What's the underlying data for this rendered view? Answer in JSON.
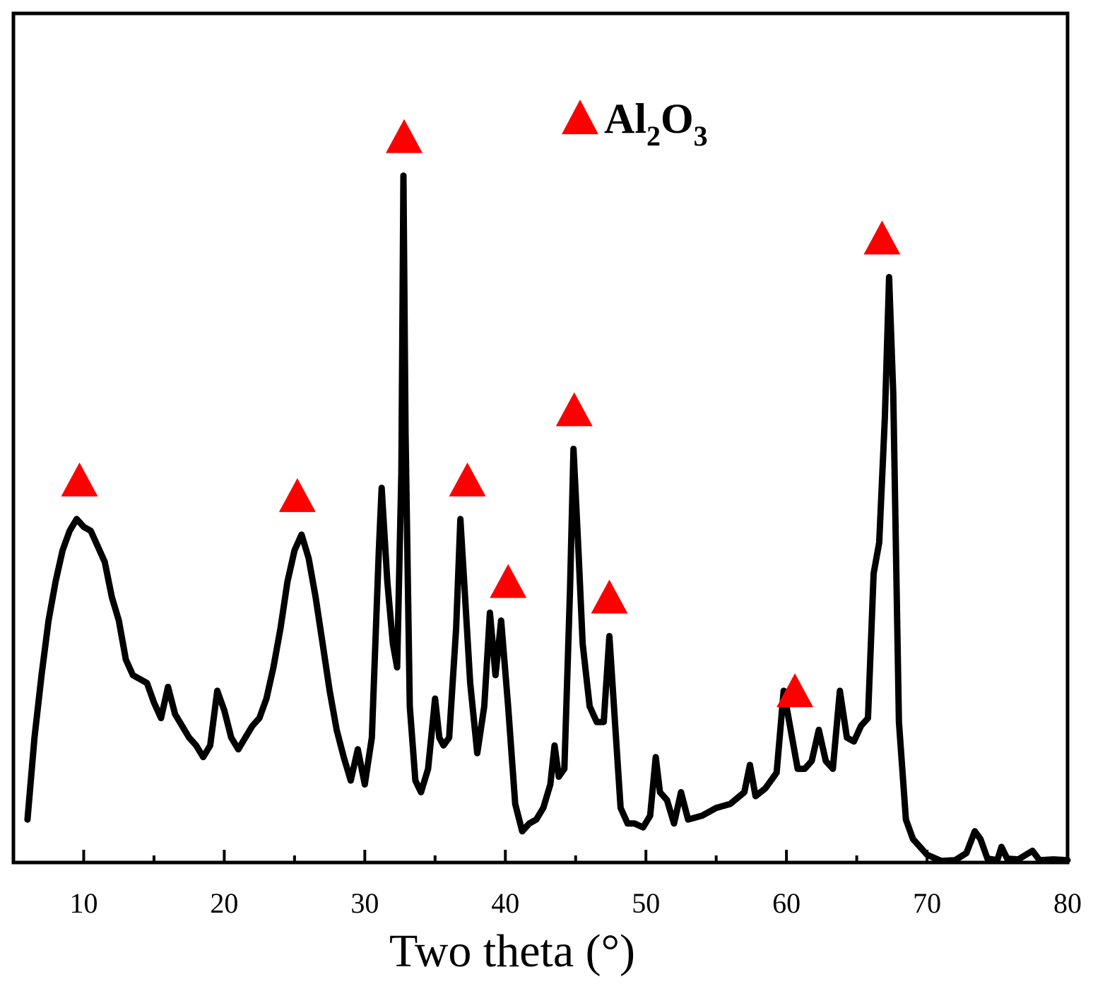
{
  "chart_data": {
    "type": "line",
    "title": "",
    "xlabel": "Two theta (°)",
    "ylabel": "",
    "xlim": [
      5,
      80
    ],
    "ylim": [
      0,
      100
    ],
    "x_ticks": [
      "10",
      "20",
      "30",
      "40",
      "50",
      "60",
      "70",
      "80"
    ],
    "grid": false,
    "line_color": "#000000",
    "marker_color": "#ff0000",
    "legend": {
      "placement": "top-center",
      "marker": "red-triangle",
      "label_base_1": "Al",
      "label_sub_1": "2",
      "label_base_2": "O",
      "label_sub_2": "3"
    },
    "peak_markers_x": [
      9.7,
      25.2,
      32.8,
      37.3,
      40.2,
      44.9,
      47.4,
      60.6,
      66.8
    ],
    "series": [
      {
        "values": [
          [
            6.0,
            5.5
          ],
          [
            6.5,
            16
          ],
          [
            7.0,
            24
          ],
          [
            7.5,
            31
          ],
          [
            8.0,
            36
          ],
          [
            8.5,
            40
          ],
          [
            9.0,
            42.5
          ],
          [
            9.5,
            44
          ],
          [
            10.0,
            43
          ],
          [
            10.5,
            42.5
          ],
          [
            11.0,
            40.5
          ],
          [
            11.5,
            38.5
          ],
          [
            12.0,
            34
          ],
          [
            12.5,
            31
          ],
          [
            13.0,
            26
          ],
          [
            13.5,
            24
          ],
          [
            14.0,
            23.5
          ],
          [
            14.5,
            23
          ],
          [
            15.0,
            20.5
          ],
          [
            15.5,
            18.5
          ],
          [
            16.0,
            22.5
          ],
          [
            16.5,
            19
          ],
          [
            17.0,
            17.5
          ],
          [
            17.5,
            16
          ],
          [
            18.0,
            15
          ],
          [
            18.5,
            13.5
          ],
          [
            19.0,
            15
          ],
          [
            19.5,
            22
          ],
          [
            20.0,
            19.5
          ],
          [
            20.5,
            16
          ],
          [
            21.0,
            14.5
          ],
          [
            21.5,
            16
          ],
          [
            22.0,
            17.5
          ],
          [
            22.5,
            18.5
          ],
          [
            23.0,
            21
          ],
          [
            23.5,
            25
          ],
          [
            24.0,
            30
          ],
          [
            24.5,
            36
          ],
          [
            25.0,
            40
          ],
          [
            25.5,
            42
          ],
          [
            26.0,
            39
          ],
          [
            26.5,
            34
          ],
          [
            27.0,
            28
          ],
          [
            27.5,
            22
          ],
          [
            28.0,
            17
          ],
          [
            28.5,
            13.5
          ],
          [
            29.0,
            10.5
          ],
          [
            29.5,
            14.5
          ],
          [
            30.0,
            10
          ],
          [
            30.5,
            16
          ],
          [
            31.0,
            40
          ],
          [
            31.2,
            48
          ],
          [
            31.6,
            36
          ],
          [
            32.0,
            28
          ],
          [
            32.3,
            25
          ],
          [
            32.6,
            50
          ],
          [
            32.75,
            88
          ],
          [
            32.9,
            55
          ],
          [
            33.2,
            20
          ],
          [
            33.6,
            10.5
          ],
          [
            34.0,
            9
          ],
          [
            34.5,
            12
          ],
          [
            35.0,
            21
          ],
          [
            35.3,
            16
          ],
          [
            35.6,
            15
          ],
          [
            36.0,
            16
          ],
          [
            36.5,
            30
          ],
          [
            36.8,
            44
          ],
          [
            37.1,
            35
          ],
          [
            37.5,
            23
          ],
          [
            38.0,
            14
          ],
          [
            38.5,
            20
          ],
          [
            38.9,
            32
          ],
          [
            39.3,
            24
          ],
          [
            39.7,
            31
          ],
          [
            40.2,
            20
          ],
          [
            40.7,
            7.5
          ],
          [
            41.2,
            4
          ],
          [
            41.7,
            5
          ],
          [
            42.2,
            5.5
          ],
          [
            42.7,
            7
          ],
          [
            43.2,
            10
          ],
          [
            43.5,
            15
          ],
          [
            43.8,
            11
          ],
          [
            44.2,
            12
          ],
          [
            44.6,
            35
          ],
          [
            44.85,
            53
          ],
          [
            45.2,
            40
          ],
          [
            45.5,
            28
          ],
          [
            46.0,
            20
          ],
          [
            46.5,
            18
          ],
          [
            47.0,
            18
          ],
          [
            47.4,
            29
          ],
          [
            47.8,
            18
          ],
          [
            48.2,
            7
          ],
          [
            48.7,
            5
          ],
          [
            49.2,
            5
          ],
          [
            49.8,
            4.5
          ],
          [
            50.3,
            6
          ],
          [
            50.7,
            13.5
          ],
          [
            51.0,
            9
          ],
          [
            51.5,
            8
          ],
          [
            52.0,
            5
          ],
          [
            52.5,
            9
          ],
          [
            53.0,
            5.5
          ],
          [
            54.0,
            6
          ],
          [
            55.0,
            7
          ],
          [
            56.0,
            7.5
          ],
          [
            57.0,
            9
          ],
          [
            57.4,
            12.5
          ],
          [
            57.8,
            8.5
          ],
          [
            58.5,
            9.5
          ],
          [
            59.3,
            11.5
          ],
          [
            59.8,
            22
          ],
          [
            60.3,
            17
          ],
          [
            60.8,
            12
          ],
          [
            61.3,
            12
          ],
          [
            61.8,
            13
          ],
          [
            62.3,
            17
          ],
          [
            62.8,
            13
          ],
          [
            63.3,
            12
          ],
          [
            63.8,
            22
          ],
          [
            64.3,
            16
          ],
          [
            64.8,
            15.5
          ],
          [
            65.3,
            17.5
          ],
          [
            65.8,
            18.5
          ],
          [
            66.2,
            37
          ],
          [
            66.6,
            41
          ],
          [
            67.0,
            57
          ],
          [
            67.3,
            75
          ],
          [
            67.6,
            60
          ],
          [
            68.0,
            18
          ],
          [
            68.5,
            5.5
          ],
          [
            69.0,
            3
          ],
          [
            70.0,
            1
          ],
          [
            71.0,
            0.2
          ],
          [
            72.0,
            0.3
          ],
          [
            72.8,
            1.2
          ],
          [
            73.4,
            4
          ],
          [
            73.8,
            3
          ],
          [
            74.3,
            0.5
          ],
          [
            75.0,
            0.3
          ],
          [
            75.3,
            2
          ],
          [
            75.7,
            0.5
          ],
          [
            76.5,
            0.4
          ],
          [
            77.5,
            1.5
          ],
          [
            78.0,
            0.3
          ],
          [
            79.0,
            0.4
          ],
          [
            80.0,
            0.3
          ]
        ]
      }
    ]
  }
}
